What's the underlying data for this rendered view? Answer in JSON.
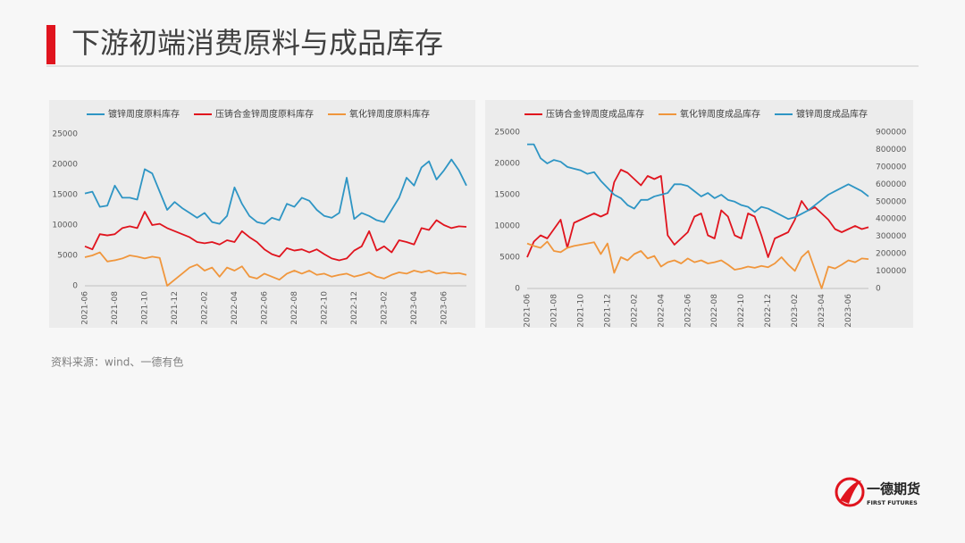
{
  "title": "下游初端消费原料与成品库存",
  "source": "资料来源：wind、一德有色",
  "logo": {
    "name": "一德期货",
    "subtitle": "FIRST FUTURES"
  },
  "chart_data": [
    {
      "type": "line",
      "legend": "top",
      "grid": false,
      "categories": [
        "2021-06",
        null,
        null,
        null,
        "2021-08",
        null,
        null,
        null,
        "2021-10",
        null,
        null,
        null,
        "2021-12",
        null,
        null,
        null,
        "2022-02",
        null,
        null,
        null,
        "2022-04",
        null,
        null,
        null,
        "2022-06",
        null,
        null,
        null,
        "2022-08",
        null,
        null,
        null,
        "2022-10",
        null,
        null,
        null,
        "2022-12",
        null,
        null,
        null,
        "2023-02",
        null,
        null,
        null,
        "2023-04",
        null,
        null,
        null,
        "2023-06",
        null,
        null,
        null
      ],
      "ylim": [
        0,
        25000
      ],
      "yticks": [
        0,
        5000,
        10000,
        15000,
        20000,
        25000
      ],
      "series": [
        {
          "name": "镀锌周度原料库存",
          "color": "#2e95c4",
          "values": [
            15200,
            15500,
            13000,
            13200,
            16500,
            14500,
            14500,
            14200,
            19200,
            18500,
            15500,
            12500,
            13800,
            12800,
            12000,
            11200,
            12000,
            10500,
            10200,
            11500,
            16200,
            13500,
            11500,
            10500,
            10200,
            11200,
            10800,
            13500,
            13000,
            14500,
            14000,
            12500,
            11500,
            11200,
            12000,
            17800,
            11000,
            12000,
            11500,
            10800,
            10500,
            12500,
            14500,
            17800,
            16500,
            19500,
            20500,
            17500,
            19000,
            20800,
            19000,
            16500
          ]
        },
        {
          "name": "压铸合金锌周度原料库存",
          "color": "#e0141e",
          "values": [
            6500,
            6000,
            8500,
            8300,
            8500,
            9500,
            9800,
            9500,
            12200,
            10000,
            10200,
            9500,
            9000,
            8500,
            8000,
            7200,
            7000,
            7200,
            6800,
            7500,
            7200,
            9000,
            8000,
            7200,
            6000,
            5200,
            4800,
            6200,
            5800,
            6000,
            5500,
            6000,
            5200,
            4500,
            4200,
            4500,
            5800,
            6500,
            9000,
            5800,
            6500,
            5500,
            7500,
            7200,
            6800,
            9500,
            9200,
            10800,
            10000,
            9500,
            9800,
            9700
          ]
        },
        {
          "name": "氧化锌周度原料库存",
          "color": "#f0963c",
          "values": [
            4700,
            5000,
            5500,
            4000,
            4200,
            4500,
            5000,
            4800,
            4500,
            4800,
            4600,
            0,
            1000,
            2000,
            3000,
            3500,
            2500,
            3000,
            1500,
            3000,
            2500,
            3200,
            1500,
            1200,
            2000,
            1500,
            1000,
            2000,
            2500,
            2000,
            2500,
            1800,
            2000,
            1500,
            1800,
            2000,
            1500,
            1800,
            2200,
            1500,
            1200,
            1800,
            2200,
            2000,
            2500,
            2200,
            2500,
            2000,
            2200,
            2000,
            2100,
            1800
          ]
        }
      ]
    },
    {
      "type": "line",
      "legend": "top",
      "grid": false,
      "categories": [
        "2021-06",
        null,
        null,
        null,
        "2021-08",
        null,
        null,
        null,
        "2021-10",
        null,
        null,
        null,
        "2021-12",
        null,
        null,
        null,
        "2022-02",
        null,
        null,
        null,
        "2022-04",
        null,
        null,
        null,
        "2022-06",
        null,
        null,
        null,
        "2022-08",
        null,
        null,
        null,
        "2022-10",
        null,
        null,
        null,
        "2022-12",
        null,
        null,
        null,
        "2023-02",
        null,
        null,
        null,
        "2023-04",
        null,
        null,
        null,
        "2023-06",
        null,
        null,
        null
      ],
      "ylim": [
        0,
        25000
      ],
      "yticks": [
        0,
        5000,
        10000,
        15000,
        20000,
        25000
      ],
      "y2lim": [
        0,
        900000
      ],
      "y2ticks": [
        0,
        100000,
        200000,
        300000,
        400000,
        500000,
        600000,
        700000,
        800000,
        900000
      ],
      "series": [
        {
          "name": "压铸合金锌周度成品库存",
          "color": "#e0141e",
          "values": [
            5000,
            7500,
            8500,
            8000,
            9500,
            11000,
            6500,
            10500,
            11000,
            11500,
            12000,
            11500,
            12000,
            17000,
            19000,
            18500,
            17500,
            16500,
            18000,
            17500,
            18000,
            8500,
            7000,
            8000,
            9000,
            11500,
            12000,
            8500,
            8000,
            12500,
            11500,
            8500,
            8000,
            12000,
            11500,
            8500,
            5000,
            8000,
            8500,
            9000,
            11000,
            14000,
            12500,
            13000,
            12000,
            11000,
            9500,
            9000,
            9500,
            10000,
            9500,
            9800
          ]
        },
        {
          "name": "氧化锌周度成品库存",
          "color": "#f0963c",
          "values": [
            7200,
            6800,
            6500,
            7500,
            6000,
            5800,
            6500,
            6800,
            7000,
            7200,
            7400,
            5500,
            7200,
            2500,
            5000,
            4500,
            5500,
            6000,
            4800,
            5200,
            3500,
            4200,
            4500,
            4000,
            4800,
            4200,
            4500,
            4000,
            4200,
            4500,
            3800,
            3000,
            3200,
            3500,
            3300,
            3600,
            3400,
            4000,
            5000,
            3800,
            2800,
            5000,
            6000,
            3000,
            0,
            3500,
            3200,
            3800,
            4500,
            4200,
            4800,
            4700
          ]
        },
        {
          "name": "镀锌周度成品库存",
          "color": "#2e95c4",
          "axis": "y2",
          "values": [
            830000,
            830000,
            750000,
            720000,
            740000,
            730000,
            700000,
            690000,
            680000,
            660000,
            670000,
            620000,
            580000,
            540000,
            520000,
            480000,
            460000,
            510000,
            510000,
            530000,
            540000,
            550000,
            600000,
            600000,
            590000,
            560000,
            530000,
            550000,
            520000,
            540000,
            510000,
            500000,
            480000,
            470000,
            440000,
            470000,
            460000,
            440000,
            420000,
            400000,
            410000,
            430000,
            450000,
            480000,
            510000,
            540000,
            560000,
            580000,
            600000,
            580000,
            560000,
            530000
          ]
        }
      ]
    }
  ]
}
